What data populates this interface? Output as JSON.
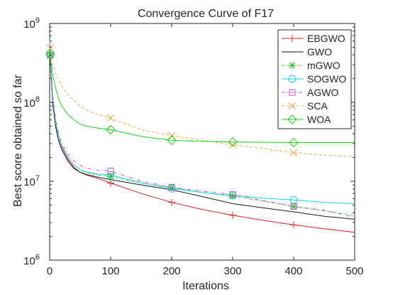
{
  "chart_data": {
    "type": "line",
    "title": "Convergence Curve of F17",
    "xlabel": "Iterations",
    "ylabel": "Best score obtained so far",
    "xlim": [
      0,
      500
    ],
    "ylim": [
      1000000,
      1000000000
    ],
    "yscale": "log",
    "grid": false,
    "legend_position": "top-right",
    "x_ticks": [
      "0",
      "100",
      "200",
      "300",
      "400",
      "500"
    ],
    "y_ticks": [
      {
        "base": "10",
        "exp": "6"
      },
      {
        "base": "10",
        "exp": "7"
      },
      {
        "base": "10",
        "exp": "8"
      },
      {
        "base": "10",
        "exp": "9"
      }
    ],
    "x": [
      0,
      2,
      5,
      10,
      15,
      20,
      30,
      40,
      50,
      60,
      80,
      100,
      150,
      200,
      250,
      300,
      350,
      400,
      450,
      500
    ],
    "marker_x": [
      1,
      100,
      200,
      300,
      400
    ],
    "series": [
      {
        "name": "EBGWO",
        "color": "#e8211d",
        "dash": "",
        "marker": "plus",
        "values": [
          550000000,
          250000000,
          100000000,
          50000000,
          35000000,
          27000000,
          19000000,
          15000000,
          13000000,
          12000000,
          10800000,
          9500000,
          7000000,
          5400000,
          4400000,
          3700000,
          3200000,
          2800000,
          2500000,
          2250000
        ]
      },
      {
        "name": "GWO",
        "color": "#1a1a1a",
        "dash": "",
        "marker": "none",
        "values": [
          600000000,
          260000000,
          95000000,
          48000000,
          32000000,
          25000000,
          18000000,
          14500000,
          13000000,
          12200000,
          11200000,
          10500000,
          9000000,
          7800000,
          6400000,
          5200000,
          4600000,
          4100000,
          3600000,
          3300000
        ]
      },
      {
        "name": "mGWO",
        "color": "#21c021",
        "dash": "3,2,1,2",
        "marker": "star",
        "values": [
          560000000,
          280000000,
          110000000,
          55000000,
          36000000,
          28000000,
          20000000,
          16000000,
          14000000,
          12800000,
          12000000,
          11500000,
          9500000,
          8300000,
          7200000,
          6500000,
          5600000,
          4800000,
          4200000,
          3700000
        ]
      },
      {
        "name": "SOGWO",
        "color": "#0ed6e4",
        "dash": "",
        "marker": "circle",
        "values": [
          620000000,
          290000000,
          110000000,
          54000000,
          35000000,
          28000000,
          20000000,
          16000000,
          14000000,
          13200000,
          12300000,
          12000000,
          9600000,
          8100000,
          7200000,
          6600000,
          6100000,
          5800000,
          5400000,
          5200000
        ]
      },
      {
        "name": "AGWO",
        "color": "#d04cd0",
        "dash": "5,3,1,3",
        "marker": "square",
        "values": [
          530000000,
          300000000,
          120000000,
          60000000,
          39000000,
          30000000,
          22000000,
          18000000,
          16000000,
          14600000,
          13800000,
          13500000,
          10000000,
          8400000,
          7500000,
          6800000,
          5700000,
          4800000,
          4300000,
          3500000
        ]
      },
      {
        "name": "SCA",
        "color": "#eea93d",
        "dash": "4,3",
        "marker": "x",
        "values": [
          570000000,
          420000000,
          300000000,
          230000000,
          190000000,
          160000000,
          125000000,
          105000000,
          90000000,
          80000000,
          70000000,
          63000000,
          45000000,
          38000000,
          33000000,
          29000000,
          26000000,
          23000000,
          21500000,
          20500000
        ]
      },
      {
        "name": "WOA",
        "color": "#19d419",
        "dash": "",
        "marker": "diamond",
        "values": [
          500000000,
          330000000,
          220000000,
          150000000,
          110000000,
          90000000,
          70000000,
          60000000,
          53000000,
          50000000,
          47000000,
          45000000,
          37000000,
          33000000,
          32000000,
          31500000,
          31200000,
          31000000,
          31000000,
          31000000
        ]
      }
    ]
  }
}
